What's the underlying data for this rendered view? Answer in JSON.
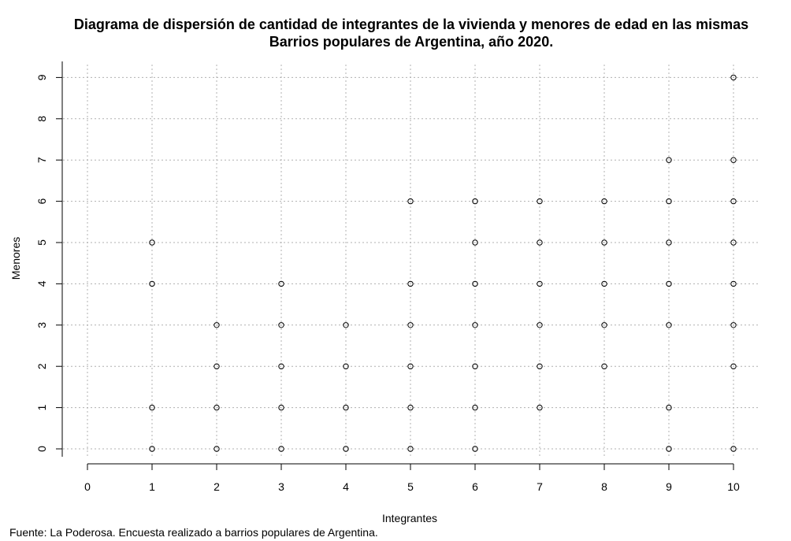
{
  "chart_data": {
    "type": "scatter",
    "title": "Diagrama de dispersión de cantidad de integrantes de la vivienda y menores de edad en las mismas",
    "subtitle": "Barrios populares de Argentina, año 2020.",
    "xlabel": "Integrantes",
    "ylabel": "Menores",
    "source": "Fuente: La Poderosa. Encuesta realizado a barrios populares de Argentina.",
    "xlim": [
      0,
      10
    ],
    "ylim": [
      0,
      9
    ],
    "x_ticks": [
      "0",
      "1",
      "2",
      "3",
      "4",
      "5",
      "6",
      "7",
      "8",
      "9",
      "10"
    ],
    "y_ticks": [
      "0",
      "1",
      "2",
      "3",
      "4",
      "5",
      "6",
      "7",
      "8",
      "9"
    ],
    "grid": true,
    "points": [
      [
        1,
        0
      ],
      [
        1,
        1
      ],
      [
        1,
        4
      ],
      [
        1,
        5
      ],
      [
        2,
        0
      ],
      [
        2,
        1
      ],
      [
        2,
        2
      ],
      [
        2,
        3
      ],
      [
        3,
        0
      ],
      [
        3,
        1
      ],
      [
        3,
        2
      ],
      [
        3,
        3
      ],
      [
        3,
        4
      ],
      [
        4,
        0
      ],
      [
        4,
        1
      ],
      [
        4,
        2
      ],
      [
        4,
        3
      ],
      [
        5,
        0
      ],
      [
        5,
        1
      ],
      [
        5,
        2
      ],
      [
        5,
        3
      ],
      [
        5,
        4
      ],
      [
        5,
        6
      ],
      [
        6,
        0
      ],
      [
        6,
        1
      ],
      [
        6,
        2
      ],
      [
        6,
        3
      ],
      [
        6,
        4
      ],
      [
        6,
        5
      ],
      [
        6,
        6
      ],
      [
        7,
        1
      ],
      [
        7,
        2
      ],
      [
        7,
        3
      ],
      [
        7,
        4
      ],
      [
        7,
        5
      ],
      [
        7,
        6
      ],
      [
        8,
        2
      ],
      [
        8,
        3
      ],
      [
        8,
        4
      ],
      [
        8,
        5
      ],
      [
        8,
        6
      ],
      [
        9,
        0
      ],
      [
        9,
        1
      ],
      [
        9,
        3
      ],
      [
        9,
        4
      ],
      [
        9,
        5
      ],
      [
        9,
        6
      ],
      [
        9,
        7
      ],
      [
        10,
        0
      ],
      [
        10,
        2
      ],
      [
        10,
        3
      ],
      [
        10,
        4
      ],
      [
        10,
        5
      ],
      [
        10,
        6
      ],
      [
        10,
        7
      ],
      [
        10,
        9
      ]
    ]
  }
}
